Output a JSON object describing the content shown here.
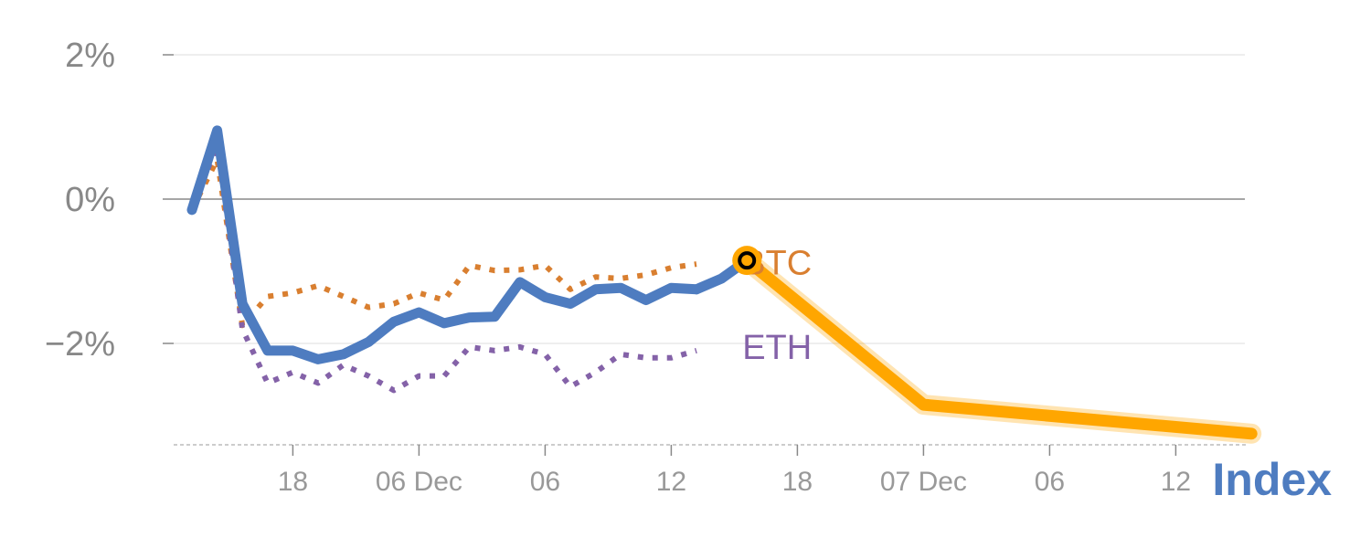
{
  "chart_data": {
    "type": "line",
    "title": "Index",
    "ylabel": "",
    "xlabel": "",
    "ylim": [
      -3.4,
      2.2
    ],
    "y_ticks": [
      {
        "value": 2,
        "label": "2%"
      },
      {
        "value": 0,
        "label": "0%"
      },
      {
        "value": -2,
        "label": "−2%"
      }
    ],
    "x_ticks": [
      {
        "x": 4,
        "label": "18"
      },
      {
        "x": 9,
        "label": "06 Dec"
      },
      {
        "x": 14,
        "label": "06"
      },
      {
        "x": 19,
        "label": "12"
      },
      {
        "x": 24,
        "label": "18"
      },
      {
        "x": 29,
        "label": "07 Dec"
      },
      {
        "x": 34,
        "label": "06"
      },
      {
        "x": 39,
        "label": "12"
      }
    ],
    "x_range": [
      0,
      43
    ],
    "series": [
      {
        "name": "BTC",
        "color": "#d97f30",
        "style": "dotted",
        "x": [
          0,
          1,
          2,
          3,
          4,
          5,
          6,
          7,
          8,
          9,
          10,
          11,
          12,
          13,
          14,
          15,
          16,
          17,
          18,
          19,
          20
        ],
        "values": [
          -0.15,
          0.55,
          -1.75,
          -1.35,
          -1.3,
          -1.2,
          -1.35,
          -1.5,
          -1.45,
          -1.3,
          -1.4,
          -0.92,
          -0.99,
          -0.98,
          -0.92,
          -1.25,
          -1.08,
          -1.1,
          -1.05,
          -0.95,
          -0.9
        ]
      },
      {
        "name": "ETH",
        "color": "#8462a8",
        "style": "dotted",
        "x": [
          0,
          1,
          2,
          3,
          4,
          5,
          6,
          7,
          8,
          9,
          10,
          11,
          12,
          13,
          14,
          15,
          16,
          17,
          18,
          19,
          20
        ],
        "values": [
          -0.15,
          0.75,
          -1.8,
          -2.55,
          -2.4,
          -2.55,
          -2.3,
          -2.45,
          -2.65,
          -2.45,
          -2.45,
          -2.05,
          -2.1,
          -2.05,
          -2.15,
          -2.6,
          -2.4,
          -2.15,
          -2.2,
          -2.2,
          -2.1
        ]
      },
      {
        "name": "Index",
        "color": "#4e7cc0",
        "style": "solid",
        "x": [
          0,
          1,
          2,
          3,
          4,
          5,
          6,
          7,
          8,
          9,
          10,
          11,
          12,
          13,
          14,
          15,
          16,
          17,
          18,
          19,
          20
        ],
        "values": [
          -0.15,
          0.95,
          -1.45,
          -2.1,
          -2.1,
          -2.22,
          -2.15,
          -1.98,
          -1.7,
          -1.57,
          -1.72,
          -1.64,
          -1.63,
          -1.15,
          -1.36,
          -1.45,
          -1.25,
          -1.23,
          -1.4,
          -1.23,
          -1.25
        ]
      },
      {
        "name": "Index (tail)",
        "color": "#4e7cc0",
        "style": "solid",
        "x": [
          20,
          21,
          22
        ],
        "values": [
          -1.25,
          -1.1,
          -0.85
        ]
      },
      {
        "name": "Projection",
        "color": "#ffa600",
        "style": "thick",
        "x": [
          22,
          29,
          42
        ],
        "values": [
          -0.85,
          -2.85,
          -3.25
        ]
      }
    ],
    "series_labels": [
      {
        "text": "BTC",
        "color": "#d97f30",
        "x": 22,
        "y": -0.88
      },
      {
        "text": "ETH",
        "color": "#8462a8",
        "x": 22,
        "y": -2.05
      }
    ],
    "marker": {
      "x": 22,
      "y": -0.85,
      "color": "#ffa600"
    },
    "index_label": {
      "text": "Index",
      "color": "#4e7cc0"
    },
    "grid": true,
    "zero_line": true
  }
}
